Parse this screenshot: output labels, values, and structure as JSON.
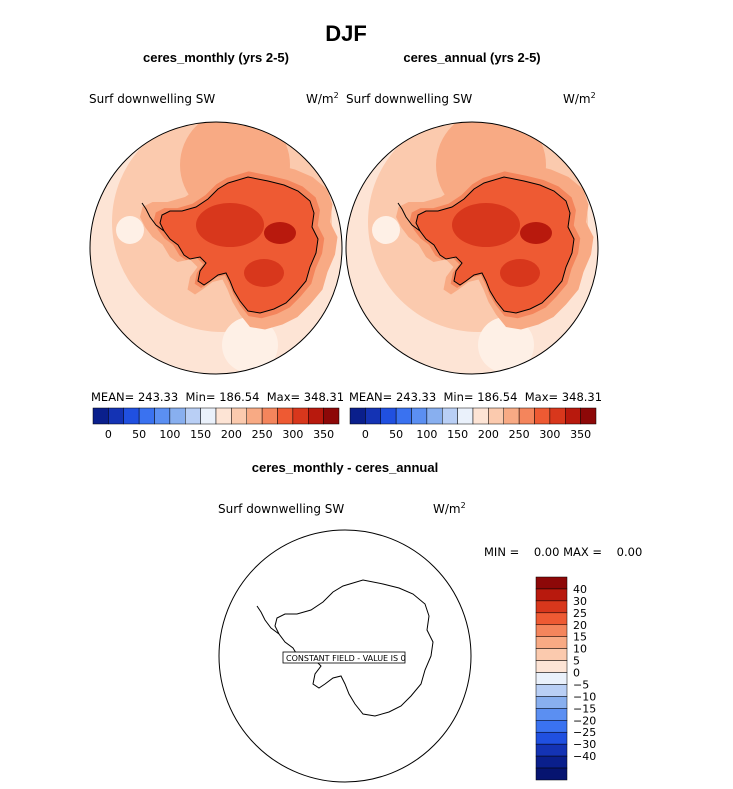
{
  "page": {
    "title": "DJF"
  },
  "panels": {
    "left": {
      "title": "ceres_monthly (yrs 2-5)",
      "variable": "Surf downwelling SW",
      "units_base": "W/m",
      "units_exp": "2",
      "stats": "MEAN= 243.33  Min= 186.54  Max= 348.31"
    },
    "right": {
      "title": "ceres_annual (yrs 2-5)",
      "variable": "Surf downwelling SW",
      "units_base": "W/m",
      "units_exp": "2",
      "stats": "MEAN= 243.33  Min= 186.54  Max= 348.31"
    },
    "diff": {
      "title": "ceres_monthly - ceres_annual",
      "variable": "Surf downwelling SW",
      "units_base": "W/m",
      "units_exp": "2",
      "minmax": "MIN =    0.00 MAX =    0.00",
      "constant_label": "CONSTANT FIELD - VALUE IS 0"
    }
  },
  "colorbar_main": {
    "colors": [
      "#0a1f8c",
      "#1433b4",
      "#2050e0",
      "#3a72f0",
      "#5b8ff2",
      "#88afef",
      "#b9cff5",
      "#eaf1fb",
      "#fde4d5",
      "#fbcaae",
      "#f8aa84",
      "#f4855c",
      "#ee5a33",
      "#d8371c",
      "#b8190d",
      "#8d0808"
    ],
    "ticks": [
      "0",
      "50",
      "100",
      "150",
      "200",
      "250",
      "300",
      "350"
    ]
  },
  "colorbar_diff": {
    "colors": [
      "#8d0808",
      "#b8190d",
      "#d8371c",
      "#ee5a33",
      "#f4855c",
      "#f8aa84",
      "#fbcaae",
      "#fde4d5",
      "#eaf1fb",
      "#b9cff5",
      "#88afef",
      "#5b8ff2",
      "#3a72f0",
      "#2050e0",
      "#1433b4",
      "#0a1f8c",
      "#061470"
    ],
    "ticks": [
      "40",
      "30",
      "25",
      "20",
      "15",
      "10",
      "5",
      "0",
      "−5",
      "−10",
      "−15",
      "−20",
      "−25",
      "−30",
      "−40"
    ]
  },
  "chart_data": [
    {
      "type": "heatmap",
      "title": "ceres_monthly (yrs 2-5)",
      "variable": "Surf downwelling SW",
      "units": "W/m2",
      "mean": 243.33,
      "min": 186.54,
      "max": 348.31,
      "color_range": [
        0,
        350
      ]
    },
    {
      "type": "heatmap",
      "title": "ceres_annual (yrs 2-5)",
      "variable": "Surf downwelling SW",
      "units": "W/m2",
      "mean": 243.33,
      "min": 186.54,
      "max": 348.31,
      "color_range": [
        0,
        350
      ]
    },
    {
      "type": "heatmap",
      "title": "ceres_monthly - ceres_annual",
      "variable": "Surf downwelling SW",
      "units": "W/m2",
      "min": 0.0,
      "max": 0.0,
      "color_range": [
        -40,
        40
      ]
    }
  ]
}
